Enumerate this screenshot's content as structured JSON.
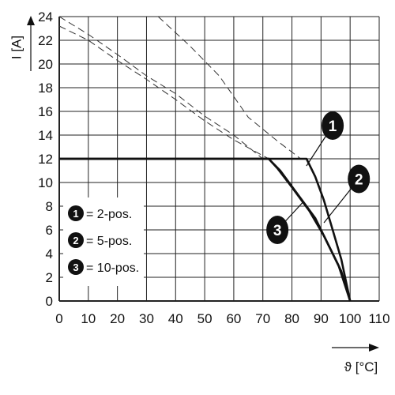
{
  "chart_data": {
    "type": "line",
    "title": "",
    "xlabel": "ϑ [°C]",
    "ylabel": "I [A]",
    "xlim": [
      0,
      110
    ],
    "ylim": [
      0,
      24
    ],
    "x_ticks": [
      "0",
      "10",
      "20",
      "30",
      "40",
      "50",
      "60",
      "70",
      "80",
      "90",
      "100",
      "110"
    ],
    "y_ticks": [
      "0",
      "2",
      "4",
      "6",
      "8",
      "10",
      "12",
      "14",
      "16",
      "18",
      "20",
      "22",
      "24"
    ],
    "grid": true,
    "legend_position": "lower-left",
    "legend": [
      {
        "badge": "1",
        "label": "= 2-pos."
      },
      {
        "badge": "2",
        "label": "= 5-pos."
      },
      {
        "badge": "3",
        "label": "= 10-pos."
      }
    ],
    "series": [
      {
        "badge": "1",
        "dashed_theoretical": [
          [
            34,
            24
          ],
          [
            45,
            21.5
          ],
          [
            55,
            19
          ],
          [
            65,
            15.5
          ],
          [
            75,
            13.5
          ],
          [
            83,
            12
          ]
        ],
        "derated": [
          [
            0,
            12
          ],
          [
            85,
            12
          ],
          [
            88,
            10.5
          ],
          [
            91,
            8.5
          ],
          [
            94,
            6
          ],
          [
            97,
            3.5
          ],
          [
            100,
            0
          ]
        ]
      },
      {
        "badge": "2",
        "dashed_theoretical": [
          [
            0,
            24
          ],
          [
            10,
            22.5
          ],
          [
            20,
            20.8
          ],
          [
            30,
            19
          ],
          [
            40,
            17.5
          ],
          [
            50,
            15.6
          ],
          [
            60,
            14
          ],
          [
            70,
            12
          ]
        ],
        "derated": [
          [
            0,
            12
          ],
          [
            72,
            12
          ],
          [
            76,
            11
          ],
          [
            82,
            9
          ],
          [
            88,
            7
          ],
          [
            93,
            4.5
          ],
          [
            97,
            2.5
          ],
          [
            100,
            0
          ]
        ]
      },
      {
        "badge": "3",
        "dashed_theoretical": [
          [
            0,
            23.2
          ],
          [
            10,
            22
          ],
          [
            20,
            20.3
          ],
          [
            30,
            18.7
          ],
          [
            40,
            17
          ],
          [
            50,
            15.2
          ],
          [
            60,
            13.6
          ],
          [
            72,
            12
          ]
        ],
        "derated": [
          [
            0,
            12
          ],
          [
            72,
            12
          ],
          [
            75,
            11.2
          ],
          [
            80,
            9.6
          ],
          [
            86,
            7.6
          ],
          [
            91,
            5.5
          ],
          [
            96,
            3
          ],
          [
            100,
            0
          ]
        ]
      }
    ],
    "callouts": [
      {
        "badge": "1",
        "badge_pos": [
          94,
          14.8
        ],
        "target": [
          85,
          11.4
        ]
      },
      {
        "badge": "2",
        "badge_pos": [
          103,
          10.3
        ],
        "target": [
          91,
          6.6
        ]
      },
      {
        "badge": "3",
        "badge_pos": [
          75,
          6.0
        ],
        "target": [
          84,
          8.4
        ]
      }
    ]
  }
}
